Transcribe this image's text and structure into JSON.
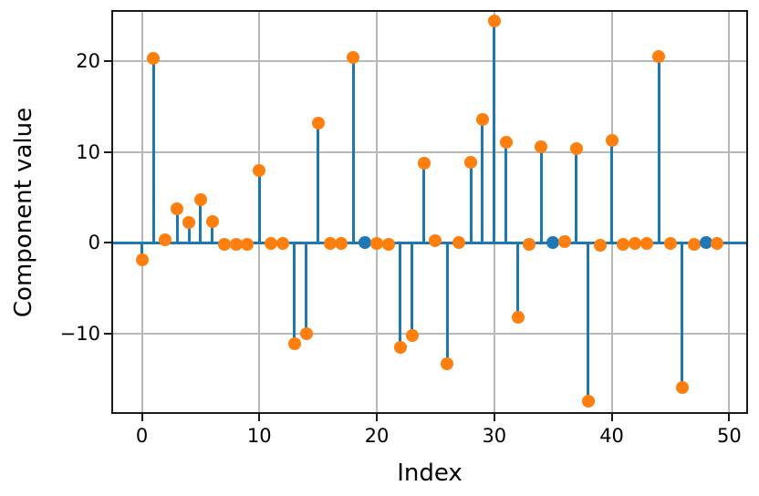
{
  "chart_data": {
    "type": "stem",
    "title": "",
    "xlabel": "Index",
    "ylabel": "Component value",
    "grid": true,
    "legend": "none",
    "xlim": [
      -2.45,
      51.45
    ],
    "ylim": [
      -18.6,
      25.4
    ],
    "xticks": [
      0,
      10,
      20,
      30,
      40,
      50
    ],
    "xtick_labels": [
      "0",
      "10",
      "20",
      "30",
      "40",
      "50"
    ],
    "yticks": [
      -10,
      0,
      10,
      20
    ],
    "ytick_labels": [
      "−10",
      "0",
      "10",
      "20"
    ],
    "x": [
      0,
      1,
      2,
      3,
      4,
      5,
      6,
      7,
      8,
      9,
      10,
      11,
      12,
      13,
      14,
      15,
      16,
      17,
      18,
      19,
      20,
      21,
      22,
      23,
      24,
      25,
      26,
      27,
      28,
      29,
      30,
      31,
      32,
      33,
      34,
      35,
      36,
      37,
      38,
      39,
      40,
      41,
      42,
      43,
      44,
      45,
      46,
      47,
      48,
      49
    ],
    "values": [
      -1.9,
      20.3,
      0.3,
      3.8,
      2.2,
      4.8,
      2.3,
      -0.2,
      -0.2,
      -0.2,
      8.0,
      -0.1,
      -0.1,
      -11.1,
      -10.0,
      13.2,
      -0.1,
      -0.1,
      20.4,
      0.0,
      -0.1,
      -0.2,
      -11.5,
      -10.2,
      8.8,
      0.2,
      -13.3,
      0.0,
      8.9,
      13.6,
      24.4,
      11.1,
      -8.2,
      -0.2,
      10.6,
      0.0,
      0.1,
      10.4,
      -17.4,
      -0.3,
      11.3,
      -0.2,
      -0.1,
      -0.1,
      20.5,
      -0.1,
      -15.9,
      -0.2,
      0.0,
      -0.1
    ],
    "highlight_indices": [
      19,
      35,
      48
    ],
    "colors": {
      "stem": "#1f77b4",
      "baseline": "#1f77b4",
      "marker": "#ff7f0e",
      "highlight_marker": "#1f77b4",
      "grid": "#b8b8b8",
      "spine": "#1a1a1a"
    }
  }
}
